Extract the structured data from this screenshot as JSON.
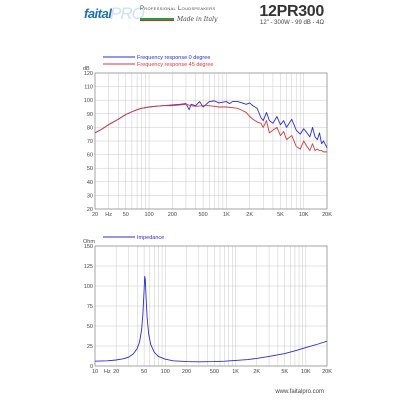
{
  "header": {
    "brand_left": "faital",
    "brand_right": "PRO",
    "tagline": "Professional Loudspeakers",
    "made_in": "Made in Italy",
    "model": "12PR300",
    "specs": "12\" - 300W - 99 dB - 4Ω"
  },
  "footer": {
    "url": "www.faitalpro.com"
  },
  "chart_data": [
    {
      "type": "line",
      "xscale": "log",
      "xlim": [
        20,
        20000
      ],
      "ylim": [
        20,
        120
      ],
      "ylabel": "dB",
      "xticks": [
        {
          "v": 20,
          "l": "20"
        },
        {
          "v": 30,
          "l": "Hz"
        },
        {
          "v": 50,
          "l": "50"
        },
        {
          "v": 100,
          "l": "100"
        },
        {
          "v": 200,
          "l": "200"
        },
        {
          "v": 500,
          "l": "500"
        },
        {
          "v": 1000,
          "l": "1K"
        },
        {
          "v": 2000,
          "l": "2K"
        },
        {
          "v": 5000,
          "l": "5K"
        },
        {
          "v": 10000,
          "l": "10K"
        },
        {
          "v": 20000,
          "l": "20K"
        }
      ],
      "yticks": [
        20,
        30,
        40,
        50,
        60,
        70,
        80,
        90,
        100,
        110,
        120
      ],
      "grid": true,
      "legend_position": "top-left",
      "series": [
        {
          "name": "Frequency response 0 degree",
          "color": "#2b2bd6",
          "points": [
            [
              20,
              76
            ],
            [
              25,
              79
            ],
            [
              30,
              82
            ],
            [
              40,
              86
            ],
            [
              50,
              89.5
            ],
            [
              60,
              91.5
            ],
            [
              70,
              93
            ],
            [
              80,
              94
            ],
            [
              100,
              95
            ],
            [
              120,
              95.5
            ],
            [
              150,
              96
            ],
            [
              200,
              96.5
            ],
            [
              250,
              97
            ],
            [
              300,
              97.5
            ],
            [
              330,
              93
            ],
            [
              350,
              97
            ],
            [
              400,
              96
            ],
            [
              450,
              99
            ],
            [
              500,
              95
            ],
            [
              550,
              97
            ],
            [
              600,
              99
            ],
            [
              700,
              99.5
            ],
            [
              800,
              98
            ],
            [
              900,
              98.5
            ],
            [
              1000,
              99
            ],
            [
              1100,
              97.5
            ],
            [
              1200,
              99
            ],
            [
              1400,
              99
            ],
            [
              1600,
              98
            ],
            [
              1800,
              97
            ],
            [
              2000,
              98
            ],
            [
              2200,
              96
            ],
            [
              2500,
              94
            ],
            [
              2800,
              87
            ],
            [
              3000,
              85
            ],
            [
              3300,
              91
            ],
            [
              3600,
              85
            ],
            [
              4000,
              83
            ],
            [
              4500,
              88
            ],
            [
              5000,
              82
            ],
            [
              5500,
              85
            ],
            [
              6000,
              80
            ],
            [
              7000,
              86
            ],
            [
              8000,
              78
            ],
            [
              9000,
              75
            ],
            [
              10000,
              79
            ],
            [
              11000,
              76
            ],
            [
              12000,
              73
            ],
            [
              13000,
              80
            ],
            [
              14000,
              73
            ],
            [
              15000,
              71
            ],
            [
              16000,
              76
            ],
            [
              17000,
              68
            ],
            [
              18000,
              70
            ],
            [
              20000,
              65
            ]
          ]
        },
        {
          "name": "Frequency response 45 degree",
          "color": "#d63a3a",
          "points": [
            [
              20,
              76
            ],
            [
              25,
              79
            ],
            [
              30,
              82
            ],
            [
              40,
              86
            ],
            [
              50,
              89.5
            ],
            [
              60,
              91.5
            ],
            [
              70,
              93
            ],
            [
              80,
              94
            ],
            [
              100,
              95
            ],
            [
              120,
              95.5
            ],
            [
              150,
              96
            ],
            [
              200,
              96
            ],
            [
              250,
              96.5
            ],
            [
              300,
              97
            ],
            [
              350,
              96
            ],
            [
              400,
              95.5
            ],
            [
              500,
              96
            ],
            [
              600,
              96
            ],
            [
              700,
              95.5
            ],
            [
              800,
              95
            ],
            [
              900,
              95
            ],
            [
              1000,
              95
            ],
            [
              1200,
              94.5
            ],
            [
              1400,
              94
            ],
            [
              1600,
              92.5
            ],
            [
              1800,
              91
            ],
            [
              2000,
              88
            ],
            [
              2200,
              86
            ],
            [
              2500,
              84
            ],
            [
              2800,
              83
            ],
            [
              3000,
              80
            ],
            [
              3300,
              85
            ],
            [
              3600,
              76
            ],
            [
              4000,
              78
            ],
            [
              4500,
              80
            ],
            [
              5000,
              74
            ],
            [
              5500,
              77
            ],
            [
              6000,
              71
            ],
            [
              7000,
              74
            ],
            [
              8000,
              66
            ],
            [
              9000,
              64
            ],
            [
              10000,
              70
            ],
            [
              11000,
              66
            ],
            [
              12000,
              63
            ],
            [
              13000,
              68
            ],
            [
              14000,
              63
            ],
            [
              15000,
              64
            ],
            [
              16000,
              63
            ],
            [
              17000,
              63
            ],
            [
              18000,
              62
            ],
            [
              20000,
              62
            ]
          ]
        }
      ]
    },
    {
      "type": "line",
      "xscale": "log",
      "xlim": [
        10,
        20000
      ],
      "ylim": [
        0,
        150
      ],
      "ylabel": "Ohm",
      "xticks": [
        {
          "v": 10,
          "l": "10"
        },
        {
          "v": 15,
          "l": "Hz"
        },
        {
          "v": 20,
          "l": "20"
        },
        {
          "v": 50,
          "l": "50"
        },
        {
          "v": 100,
          "l": "100"
        },
        {
          "v": 200,
          "l": "200"
        },
        {
          "v": 500,
          "l": "500"
        },
        {
          "v": 1000,
          "l": "1K"
        },
        {
          "v": 2000,
          "l": "2K"
        },
        {
          "v": 5000,
          "l": "5K"
        },
        {
          "v": 10000,
          "l": "10K"
        },
        {
          "v": 20000,
          "l": "20K"
        }
      ],
      "yticks": [
        0,
        25,
        50,
        75,
        100,
        125,
        150
      ],
      "grid": true,
      "legend_position": "top-left",
      "series": [
        {
          "name": "Impedance",
          "color": "#2b2bd6",
          "points": [
            [
              10,
              6
            ],
            [
              15,
              6.5
            ],
            [
              20,
              7.5
            ],
            [
              25,
              9
            ],
            [
              30,
              11
            ],
            [
              35,
              15
            ],
            [
              40,
              22
            ],
            [
              43,
              30
            ],
            [
              46,
              45
            ],
            [
              48,
              65
            ],
            [
              50,
              95
            ],
            [
              51,
              112
            ],
            [
              52,
              108
            ],
            [
              53,
              90
            ],
            [
              55,
              62
            ],
            [
              58,
              40
            ],
            [
              62,
              27
            ],
            [
              70,
              17
            ],
            [
              80,
              12
            ],
            [
              100,
              8.5
            ],
            [
              130,
              6.5
            ],
            [
              200,
              5.5
            ],
            [
              300,
              5.2
            ],
            [
              500,
              5.5
            ],
            [
              700,
              6
            ],
            [
              1000,
              7
            ],
            [
              1500,
              8
            ],
            [
              2000,
              9.5
            ],
            [
              3000,
              12
            ],
            [
              5000,
              15.5
            ],
            [
              7000,
              19
            ],
            [
              10000,
              23
            ],
            [
              15000,
              27.5
            ],
            [
              20000,
              31
            ]
          ]
        }
      ]
    }
  ]
}
